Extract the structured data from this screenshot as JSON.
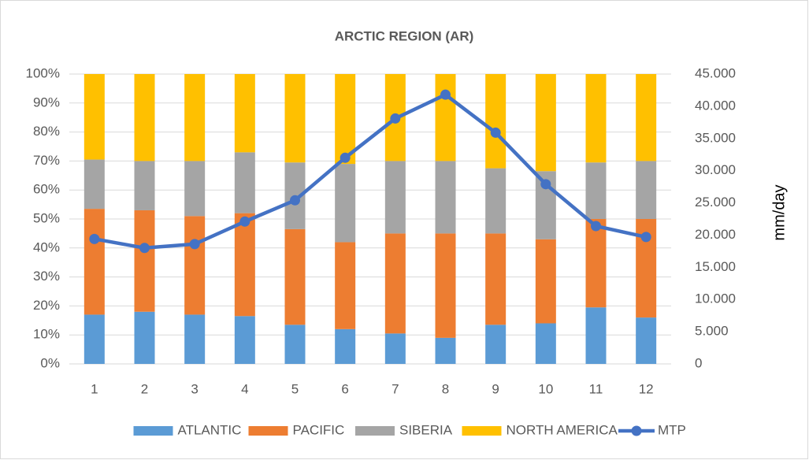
{
  "chart_data": {
    "type": "stacked_bar_line",
    "title": "ARCTIC REGION (AR)",
    "y2_label": "mm/day",
    "categories": [
      "1",
      "2",
      "3",
      "4",
      "5",
      "6",
      "7",
      "8",
      "9",
      "10",
      "11",
      "12"
    ],
    "series": [
      {
        "name": "ATLANTIC",
        "color": "#5b9bd5",
        "values": [
          17,
          18,
          17,
          16.5,
          13.5,
          12,
          10.5,
          9,
          13.5,
          14,
          19.5,
          16
        ]
      },
      {
        "name": "PACIFIC",
        "color": "#ed7d31",
        "values": [
          36.5,
          35,
          34,
          35.5,
          33,
          30,
          34.5,
          36,
          31.5,
          29,
          30.5,
          34
        ]
      },
      {
        "name": "SIBERIA",
        "color": "#a5a5a5",
        "values": [
          17,
          17,
          19,
          21,
          23,
          27,
          25,
          25,
          22.5,
          23.5,
          19.5,
          20
        ]
      },
      {
        "name": "NORTH AMERICA",
        "color": "#ffc000",
        "values": [
          29.5,
          30,
          30,
          27,
          30.5,
          31,
          30,
          30,
          32.5,
          33.5,
          30.5,
          30
        ]
      },
      {
        "name": "MTP",
        "color": "#4472c4",
        "axis": "y2",
        "values": [
          19.4,
          18.0,
          18.6,
          22.1,
          25.4,
          32.0,
          38.1,
          41.8,
          35.9,
          27.9,
          21.4,
          19.7
        ]
      }
    ],
    "ylim": [
      0,
      100
    ],
    "yticks": [
      {
        "value": 0,
        "label": "0%"
      },
      {
        "value": 10,
        "label": "10%"
      },
      {
        "value": 20,
        "label": "20%"
      },
      {
        "value": 30,
        "label": "30%"
      },
      {
        "value": 40,
        "label": "40%"
      },
      {
        "value": 50,
        "label": "50%"
      },
      {
        "value": 60,
        "label": "60%"
      },
      {
        "value": 70,
        "label": "70%"
      },
      {
        "value": 80,
        "label": "80%"
      },
      {
        "value": 90,
        "label": "90%"
      },
      {
        "value": 100,
        "label": "100%"
      }
    ],
    "y2lim": [
      0,
      45
    ],
    "y2ticks": [
      0,
      {
        "value": 5,
        "label": "5.000"
      },
      {
        "value": 10,
        "label": "10.000"
      },
      {
        "value": 15,
        "label": "15.000"
      },
      {
        "value": 20,
        "label": "20.000"
      },
      {
        "value": 25,
        "label": "25.000"
      },
      {
        "value": 30,
        "label": "30.000"
      },
      {
        "value": 35,
        "label": "35.000"
      },
      {
        "value": 40,
        "label": "40.000"
      },
      {
        "value": 45,
        "label": "45.000"
      }
    ],
    "grid": true,
    "legend": "bottom"
  }
}
